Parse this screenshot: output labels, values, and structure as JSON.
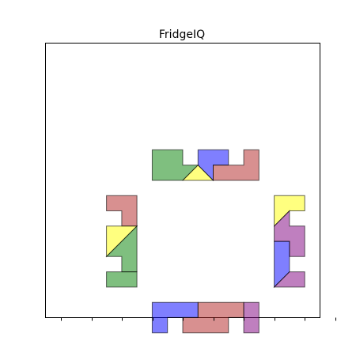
{
  "title": "FridgeIQ",
  "colors": {
    "green": "#008000",
    "blue": "#0000ff",
    "red": "#b22222",
    "yellow": "#ffff00",
    "purple": "#800080"
  },
  "pieces": [
    {
      "name": "top-green-piece",
      "color": "green",
      "points": [
        [
          6,
          7
        ],
        [
          6,
          6
        ],
        [
          7,
          6
        ],
        [
          7,
          6.5
        ],
        [
          7.5,
          6.5
        ],
        [
          7,
          7
        ]
      ]
    },
    {
      "name": "top-yellow-triangle",
      "color": "yellow",
      "points": [
        [
          7,
          7
        ],
        [
          7.5,
          6.5
        ],
        [
          8,
          7
        ]
      ]
    },
    {
      "name": "top-blue-piece",
      "color": "blue",
      "points": [
        [
          7.5,
          6.5
        ],
        [
          7.5,
          6
        ],
        [
          8.5,
          6
        ],
        [
          8.5,
          6.5
        ],
        [
          8,
          6.5
        ],
        [
          8,
          7
        ]
      ]
    },
    {
      "name": "top-red-piece",
      "color": "red",
      "points": [
        [
          8,
          7
        ],
        [
          8,
          6.5
        ],
        [
          9,
          6.5
        ],
        [
          9,
          6
        ],
        [
          9.5,
          6
        ],
        [
          9.5,
          7
        ]
      ]
    },
    {
      "name": "left-red-piece",
      "color": "red",
      "points": [
        [
          4.5,
          7.5
        ],
        [
          5.5,
          7.5
        ],
        [
          5.5,
          8.5
        ],
        [
          5,
          8.5
        ],
        [
          5,
          8
        ],
        [
          4.5,
          8
        ]
      ]
    },
    {
      "name": "left-yellow-triangle",
      "color": "yellow",
      "points": [
        [
          4.5,
          8.5
        ],
        [
          5.5,
          8.5
        ],
        [
          4.5,
          9.5
        ]
      ]
    },
    {
      "name": "left-green-piece",
      "color": "green",
      "points": [
        [
          5.5,
          8.5
        ],
        [
          5.5,
          10
        ],
        [
          5,
          10
        ],
        [
          5,
          9.5
        ],
        [
          4.5,
          9.5
        ]
      ]
    },
    {
      "name": "left-green-bar",
      "color": "green",
      "points": [
        [
          4.5,
          10
        ],
        [
          5.5,
          10
        ],
        [
          5.5,
          10.5
        ],
        [
          4.5,
          10.5
        ]
      ]
    },
    {
      "name": "right-yellow-piece",
      "color": "yellow",
      "points": [
        [
          10,
          7.5
        ],
        [
          11,
          7.5
        ],
        [
          11,
          8
        ],
        [
          10.5,
          8
        ],
        [
          10,
          8.5
        ]
      ]
    },
    {
      "name": "right-purple-piece",
      "color": "purple",
      "points": [
        [
          10,
          8.5
        ],
        [
          10.5,
          8
        ],
        [
          10.5,
          8.5
        ],
        [
          11,
          8.5
        ],
        [
          11,
          9.5
        ],
        [
          10.5,
          9.5
        ],
        [
          10.5,
          9
        ],
        [
          10,
          9
        ]
      ]
    },
    {
      "name": "right-blue-piece",
      "color": "blue",
      "points": [
        [
          10,
          9
        ],
        [
          10.5,
          9
        ],
        [
          10.5,
          10
        ],
        [
          10,
          10.5
        ]
      ]
    },
    {
      "name": "right-purple-corner",
      "color": "purple",
      "points": [
        [
          10,
          10.5
        ],
        [
          10.5,
          10
        ],
        [
          11,
          10
        ],
        [
          11,
          10.5
        ]
      ]
    },
    {
      "name": "bottom-blue-piece",
      "color": "blue",
      "points": [
        [
          6,
          11
        ],
        [
          7.5,
          11
        ],
        [
          7.5,
          11.5
        ],
        [
          6.5,
          11.5
        ],
        [
          6.5,
          12
        ],
        [
          6,
          12
        ]
      ]
    },
    {
      "name": "bottom-red-piece",
      "color": "red",
      "points": [
        [
          7.5,
          11
        ],
        [
          9,
          11
        ],
        [
          9,
          11.5
        ],
        [
          8.5,
          11.5
        ],
        [
          8.5,
          12
        ],
        [
          7,
          12
        ],
        [
          7,
          11.5
        ],
        [
          7.5,
          11.5
        ]
      ]
    },
    {
      "name": "bottom-purple-piece",
      "color": "purple",
      "points": [
        [
          9,
          11
        ],
        [
          9.5,
          11
        ],
        [
          9.5,
          12
        ],
        [
          9,
          12
        ]
      ]
    }
  ],
  "axes": {
    "xlim": [
      2,
      11
    ],
    "ylim": [
      2,
      11
    ],
    "xticks": [
      2.5,
      3.5,
      4.5,
      5.5,
      6.5,
      7.5,
      8.5,
      9.5,
      10.5,
      11.5
    ],
    "tick_labels_visible": false,
    "grid": false
  }
}
